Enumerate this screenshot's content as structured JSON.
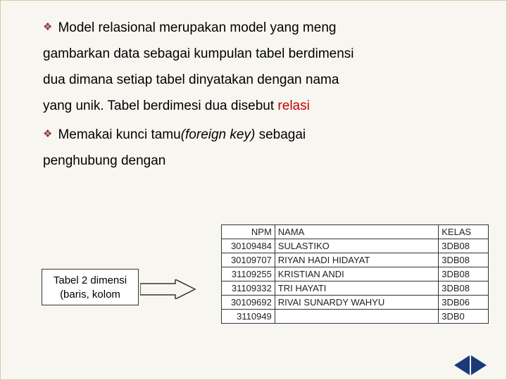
{
  "bullets": [
    {
      "lines": [
        "Model relasional merupakan model yang  meng",
        "gambarkan  data  sebagai kumpulan tabel berdimensi",
        "dua dimana setiap tabel dinyatakan dengan nama",
        "yang unik.  Tabel berdimesi dua disebut  "
      ],
      "trailing_red": "relasi"
    },
    {
      "lines": [
        "Memakai kunci tamu",
        " sebagai",
        "penghubung dengan"
      ],
      "italic_fragment": "(foreign key)"
    }
  ],
  "label_box": {
    "line1": "Tabel 2 dimensi",
    "line2": "(baris, kolom"
  },
  "table": {
    "headers": {
      "npm": "NPM",
      "nama": "NAMA",
      "kelas": "KELAS"
    },
    "rows": [
      {
        "npm": "30109484",
        "nama": "SULASTIKO",
        "kelas": "3DB08"
      },
      {
        "npm": "30109707",
        "nama": "RIYAN HADI HIDAYAT",
        "kelas": "3DB08"
      },
      {
        "npm": "31109255",
        "nama": "KRISTIAN ANDI",
        "kelas": "3DB08"
      },
      {
        "npm": "31109332",
        "nama": "TRI HAYATI",
        "kelas": "3DB08"
      },
      {
        "npm": "30109692",
        "nama": "RIVAI SUNARDY WAHYU",
        "kelas": "3DB06"
      },
      {
        "npm": "3110949",
        "nama": "",
        "kelas": "3DB0"
      }
    ]
  },
  "colors": {
    "background": "#f8f6f0",
    "diamond": "#8b3a3a",
    "relasi": "#c00000",
    "nav_arrow": "#1a3a7a",
    "border": "#333333"
  }
}
